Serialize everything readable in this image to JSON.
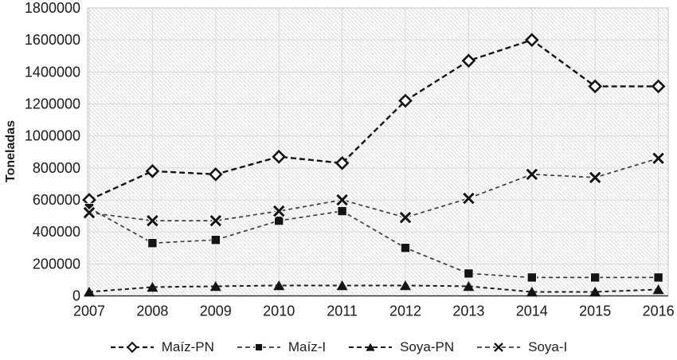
{
  "chart_data": {
    "type": "line",
    "title": "",
    "xlabel": "",
    "ylabel": "Toneladas",
    "categories": [
      "2007",
      "2008",
      "2009",
      "2010",
      "2011",
      "2012",
      "2013",
      "2014",
      "2015",
      "2016"
    ],
    "y_ticks": [
      0,
      200000,
      400000,
      600000,
      800000,
      1000000,
      1200000,
      1400000,
      1600000,
      1800000
    ],
    "ylim": [
      0,
      1800000
    ],
    "grid": "horizontal-and-vertical",
    "plot_background": "light-diagonal-hatch",
    "legend_position": "bottom",
    "series": [
      {
        "name": "Maíz-PN",
        "marker": "diamond-open",
        "line_style": "dashed",
        "values": [
          600000,
          780000,
          760000,
          870000,
          830000,
          1220000,
          1470000,
          1600000,
          1310000,
          1310000
        ]
      },
      {
        "name": "Maíz-I",
        "marker": "square-filled",
        "line_style": "dashed",
        "values": [
          550000,
          330000,
          350000,
          470000,
          530000,
          300000,
          140000,
          115000,
          115000,
          115000
        ]
      },
      {
        "name": "Soya-PN",
        "marker": "triangle-filled",
        "line_style": "dashed",
        "values": [
          25000,
          55000,
          60000,
          65000,
          65000,
          65000,
          60000,
          25000,
          25000,
          40000
        ]
      },
      {
        "name": "Soya-I",
        "marker": "x",
        "line_style": "dashed",
        "values": [
          520000,
          470000,
          470000,
          530000,
          600000,
          490000,
          610000,
          760000,
          740000,
          860000
        ]
      }
    ],
    "colors": {
      "line": "#141414",
      "grid": "#d9d9d9",
      "plot_border": "#c6c6c6",
      "axis": "#333333",
      "text": "#1a1a1a",
      "hatch": "#e2e2e2"
    }
  }
}
